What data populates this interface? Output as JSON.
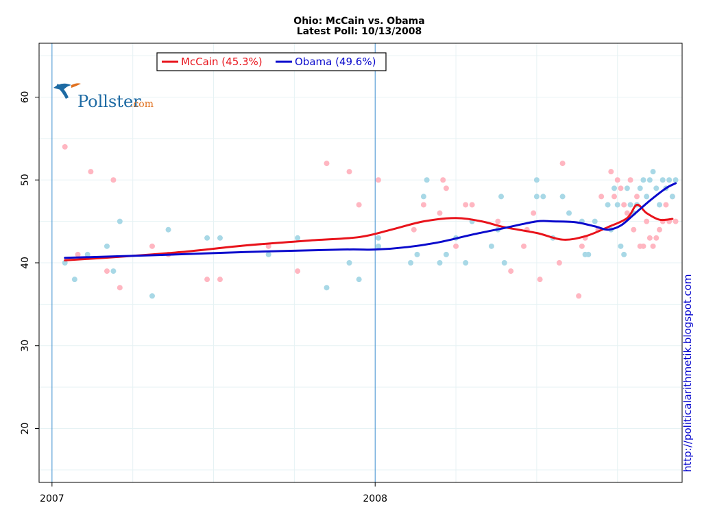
{
  "logo": {
    "name": "Pollster",
    "suffix": ".com"
  },
  "credit": "http://politicalarithmetik.blogspot.com",
  "colors": {
    "mccain_line": "#e8131b",
    "mccain_point": "#ffb6c1",
    "obama_line": "#0a0acc",
    "obama_point": "#a8d8e6",
    "grid": "#e6f2f4",
    "year_line": "#3b8ecf"
  },
  "chart_data": {
    "type": "scatter",
    "title": "Ohio: McCain vs. Obama",
    "subtitle": "Latest Poll: 10/13/2008",
    "xlabel": "",
    "ylabel": "",
    "x_unit": "years since 2007-01-01",
    "xlim": [
      -0.04,
      1.95
    ],
    "ylim": [
      13.5,
      66.5
    ],
    "y_ticks": [
      20,
      30,
      40,
      50,
      60
    ],
    "x_ticks": [
      {
        "value": 0,
        "label": "2007"
      },
      {
        "value": 1,
        "label": "2008"
      }
    ],
    "x_grid": [
      0.25,
      0.5,
      0.75,
      1.25,
      1.5,
      1.75
    ],
    "y_grid": [
      15,
      20,
      25,
      30,
      35,
      40,
      45,
      50,
      55,
      60,
      65
    ],
    "legend": {
      "position": "top-left"
    },
    "series": [
      {
        "name": "McCain",
        "label": "McCain (45.3%)",
        "latest": 45.3,
        "color": "#e8131b",
        "trend": [
          [
            0.04,
            40.3
          ],
          [
            0.2,
            40.7
          ],
          [
            0.4,
            41.3
          ],
          [
            0.6,
            42.1
          ],
          [
            0.8,
            42.7
          ],
          [
            0.95,
            43.1
          ],
          [
            1.05,
            44.0
          ],
          [
            1.15,
            45.0
          ],
          [
            1.25,
            45.4
          ],
          [
            1.33,
            45.0
          ],
          [
            1.4,
            44.3
          ],
          [
            1.5,
            43.6
          ],
          [
            1.58,
            42.8
          ],
          [
            1.65,
            43.2
          ],
          [
            1.72,
            44.3
          ],
          [
            1.78,
            45.4
          ],
          [
            1.81,
            47.0
          ],
          [
            1.84,
            46.0
          ],
          [
            1.88,
            45.2
          ],
          [
            1.92,
            45.3
          ]
        ],
        "points": [
          [
            0.04,
            54
          ],
          [
            0.08,
            41
          ],
          [
            0.12,
            51
          ],
          [
            0.17,
            39
          ],
          [
            0.19,
            50
          ],
          [
            0.21,
            37
          ],
          [
            0.31,
            42
          ],
          [
            0.36,
            41
          ],
          [
            0.48,
            38
          ],
          [
            0.52,
            38
          ],
          [
            0.67,
            42
          ],
          [
            0.76,
            39
          ],
          [
            0.85,
            52
          ],
          [
            0.92,
            51
          ],
          [
            0.95,
            47
          ],
          [
            1.01,
            50
          ],
          [
            1.12,
            44
          ],
          [
            1.15,
            47
          ],
          [
            1.2,
            46
          ],
          [
            1.21,
            50
          ],
          [
            1.22,
            49
          ],
          [
            1.25,
            42
          ],
          [
            1.28,
            47
          ],
          [
            1.3,
            47
          ],
          [
            1.38,
            45
          ],
          [
            1.42,
            39
          ],
          [
            1.46,
            42
          ],
          [
            1.47,
            44
          ],
          [
            1.49,
            46
          ],
          [
            1.51,
            38
          ],
          [
            1.57,
            40
          ],
          [
            1.58,
            52
          ],
          [
            1.63,
            36
          ],
          [
            1.64,
            42
          ],
          [
            1.65,
            43
          ],
          [
            1.69,
            44
          ],
          [
            1.7,
            48
          ],
          [
            1.73,
            51
          ],
          [
            1.74,
            48
          ],
          [
            1.75,
            50
          ],
          [
            1.76,
            49
          ],
          [
            1.77,
            47
          ],
          [
            1.78,
            46
          ],
          [
            1.79,
            50
          ],
          [
            1.8,
            44
          ],
          [
            1.81,
            48
          ],
          [
            1.82,
            42
          ],
          [
            1.83,
            42
          ],
          [
            1.84,
            45
          ],
          [
            1.85,
            43
          ],
          [
            1.86,
            42
          ],
          [
            1.87,
            43
          ],
          [
            1.88,
            44
          ],
          [
            1.89,
            45
          ],
          [
            1.9,
            47
          ],
          [
            1.91,
            45
          ],
          [
            1.92,
            48
          ],
          [
            1.93,
            45
          ]
        ]
      },
      {
        "name": "Obama",
        "label": "Obama (49.6%)",
        "latest": 49.6,
        "color": "#0a0acc",
        "trend": [
          [
            0.04,
            40.6
          ],
          [
            0.3,
            40.9
          ],
          [
            0.6,
            41.3
          ],
          [
            0.9,
            41.6
          ],
          [
            1.0,
            41.6
          ],
          [
            1.1,
            41.9
          ],
          [
            1.2,
            42.5
          ],
          [
            1.3,
            43.4
          ],
          [
            1.4,
            44.2
          ],
          [
            1.5,
            45.0
          ],
          [
            1.55,
            45.0
          ],
          [
            1.62,
            44.9
          ],
          [
            1.68,
            44.4
          ],
          [
            1.72,
            44.0
          ],
          [
            1.76,
            44.5
          ],
          [
            1.8,
            45.8
          ],
          [
            1.85,
            47.5
          ],
          [
            1.9,
            49.0
          ],
          [
            1.93,
            49.6
          ]
        ],
        "points": [
          [
            0.04,
            40
          ],
          [
            0.07,
            38
          ],
          [
            0.11,
            41
          ],
          [
            0.17,
            42
          ],
          [
            0.19,
            39
          ],
          [
            0.21,
            45
          ],
          [
            0.31,
            36
          ],
          [
            0.36,
            44
          ],
          [
            0.48,
            43
          ],
          [
            0.52,
            43
          ],
          [
            0.67,
            41
          ],
          [
            0.76,
            43
          ],
          [
            0.85,
            37
          ],
          [
            0.92,
            40
          ],
          [
            0.95,
            38
          ],
          [
            1.01,
            42
          ],
          [
            1.01,
            43
          ],
          [
            1.11,
            40
          ],
          [
            1.13,
            41
          ],
          [
            1.15,
            48
          ],
          [
            1.16,
            50
          ],
          [
            1.2,
            40
          ],
          [
            1.22,
            41
          ],
          [
            1.25,
            43
          ],
          [
            1.28,
            40
          ],
          [
            1.3,
            45
          ],
          [
            1.36,
            42
          ],
          [
            1.38,
            44
          ],
          [
            1.39,
            48
          ],
          [
            1.4,
            40
          ],
          [
            1.5,
            50
          ],
          [
            1.5,
            48
          ],
          [
            1.52,
            48
          ],
          [
            1.55,
            43
          ],
          [
            1.58,
            48
          ],
          [
            1.6,
            46
          ],
          [
            1.64,
            45
          ],
          [
            1.65,
            41
          ],
          [
            1.66,
            41
          ],
          [
            1.68,
            45
          ],
          [
            1.72,
            47
          ],
          [
            1.73,
            44
          ],
          [
            1.74,
            49
          ],
          [
            1.75,
            47
          ],
          [
            1.76,
            42
          ],
          [
            1.77,
            41
          ],
          [
            1.78,
            49
          ],
          [
            1.79,
            47
          ],
          [
            1.8,
            46
          ],
          [
            1.81,
            47
          ],
          [
            1.82,
            49
          ],
          [
            1.83,
            50
          ],
          [
            1.84,
            48
          ],
          [
            1.85,
            50
          ],
          [
            1.86,
            51
          ],
          [
            1.87,
            49
          ],
          [
            1.88,
            47
          ],
          [
            1.89,
            50
          ],
          [
            1.9,
            49
          ],
          [
            1.91,
            50
          ],
          [
            1.92,
            48
          ],
          [
            1.93,
            50
          ]
        ]
      }
    ]
  }
}
